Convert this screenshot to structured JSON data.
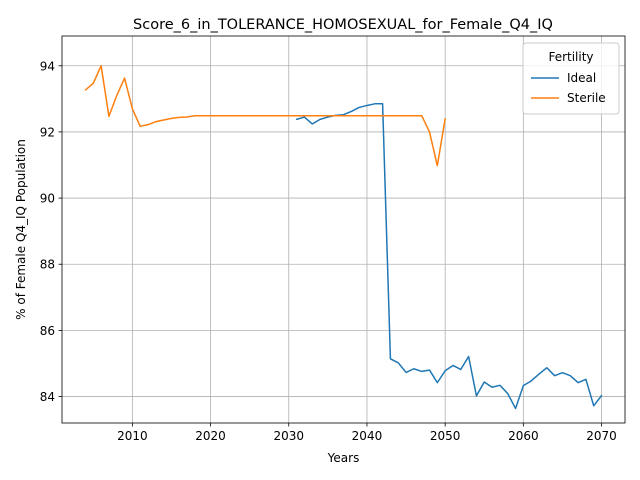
{
  "chart_data": {
    "type": "line",
    "title": "Score_6_in_TOLERANCE_HOMOSEXUAL_for_Female_Q4_IQ",
    "xlabel": "Years",
    "ylabel": "% of Female Q4_IQ Population",
    "xlim": [
      2001,
      2073
    ],
    "ylim": [
      83.2,
      94.9
    ],
    "xticks": [
      2010,
      2020,
      2030,
      2040,
      2050,
      2060,
      2070
    ],
    "yticks": [
      84,
      86,
      88,
      90,
      92,
      94
    ],
    "grid": true,
    "legend": {
      "title": "Fertility",
      "placement": "top-right"
    },
    "series": [
      {
        "name": "Ideal",
        "color": "#1f77b4",
        "x": [
          2031,
          2032,
          2033,
          2034,
          2035,
          2036,
          2037,
          2038,
          2039,
          2040,
          2041,
          2042,
          2043,
          2044,
          2045,
          2046,
          2047,
          2048,
          2049,
          2050,
          2051,
          2052,
          2053,
          2054,
          2055,
          2056,
          2057,
          2058,
          2059,
          2060,
          2061,
          2062,
          2063,
          2064,
          2065,
          2066,
          2067,
          2068,
          2069,
          2070
        ],
        "y": [
          92.38,
          92.45,
          92.24,
          92.38,
          92.45,
          92.5,
          92.52,
          92.62,
          92.74,
          92.8,
          92.85,
          92.85,
          85.14,
          85.02,
          84.73,
          84.84,
          84.76,
          84.8,
          84.42,
          84.78,
          84.94,
          84.82,
          85.21,
          84.02,
          84.44,
          84.28,
          84.34,
          84.09,
          83.64,
          84.33,
          84.47,
          84.68,
          84.87,
          84.63,
          84.72,
          84.63,
          84.42,
          84.52,
          83.72,
          84.03
        ]
      },
      {
        "name": "Sterile",
        "color": "#ff7f0e",
        "x": [
          2004,
          2005,
          2006,
          2007,
          2008,
          2009,
          2010,
          2011,
          2012,
          2013,
          2014,
          2015,
          2016,
          2017,
          2018,
          2019,
          2020,
          2021,
          2022,
          2023,
          2024,
          2025,
          2026,
          2027,
          2028,
          2029,
          2030,
          2031,
          2032,
          2033,
          2034,
          2035,
          2036,
          2037,
          2038,
          2039,
          2040,
          2041,
          2042,
          2043,
          2044,
          2045,
          2046,
          2047,
          2048,
          2049,
          2050
        ],
        "y": [
          93.27,
          93.47,
          94.0,
          92.47,
          93.1,
          93.63,
          92.7,
          92.17,
          92.22,
          92.31,
          92.36,
          92.41,
          92.44,
          92.45,
          92.49,
          92.49,
          92.49,
          92.49,
          92.49,
          92.49,
          92.49,
          92.49,
          92.49,
          92.49,
          92.49,
          92.49,
          92.49,
          92.49,
          92.49,
          92.49,
          92.49,
          92.49,
          92.49,
          92.49,
          92.49,
          92.49,
          92.49,
          92.49,
          92.49,
          92.49,
          92.49,
          92.49,
          92.49,
          92.49,
          92.0,
          90.98,
          92.4
        ]
      }
    ]
  }
}
